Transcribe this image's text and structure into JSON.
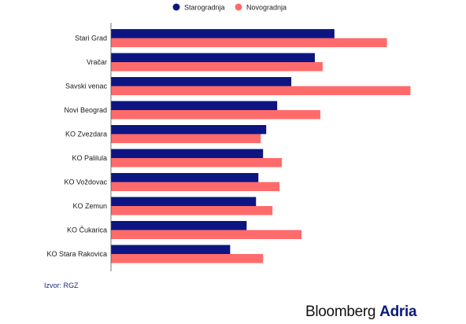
{
  "chart_data": {
    "type": "bar",
    "orientation": "horizontal",
    "categories": [
      "Stari Grad",
      "Vračar",
      "Savski venac",
      "Novi Beograd",
      "KO Zvezdara",
      "KO Palilula",
      "KO Voždovac",
      "KO Zemun",
      "KO Čukarica",
      "KO Stara Rakovica"
    ],
    "series": [
      {
        "name": "Starogradnja",
        "color": "#0d1582",
        "values": [
          285,
          260,
          230,
          212,
          198,
          194,
          188,
          185,
          173,
          152
        ]
      },
      {
        "name": "Novogradnja",
        "color": "#ff6b6b",
        "values": [
          352,
          270,
          382,
          267,
          191,
          218,
          215,
          206,
          243,
          194
        ]
      }
    ],
    "title": "",
    "xlabel": "",
    "ylabel": "",
    "xlim": [
      0,
      400
    ],
    "grid": false,
    "legend": "top-right"
  },
  "source": "Izvor: RGZ",
  "brand": {
    "part1": "Bloomberg",
    "part2": "Adria"
  }
}
